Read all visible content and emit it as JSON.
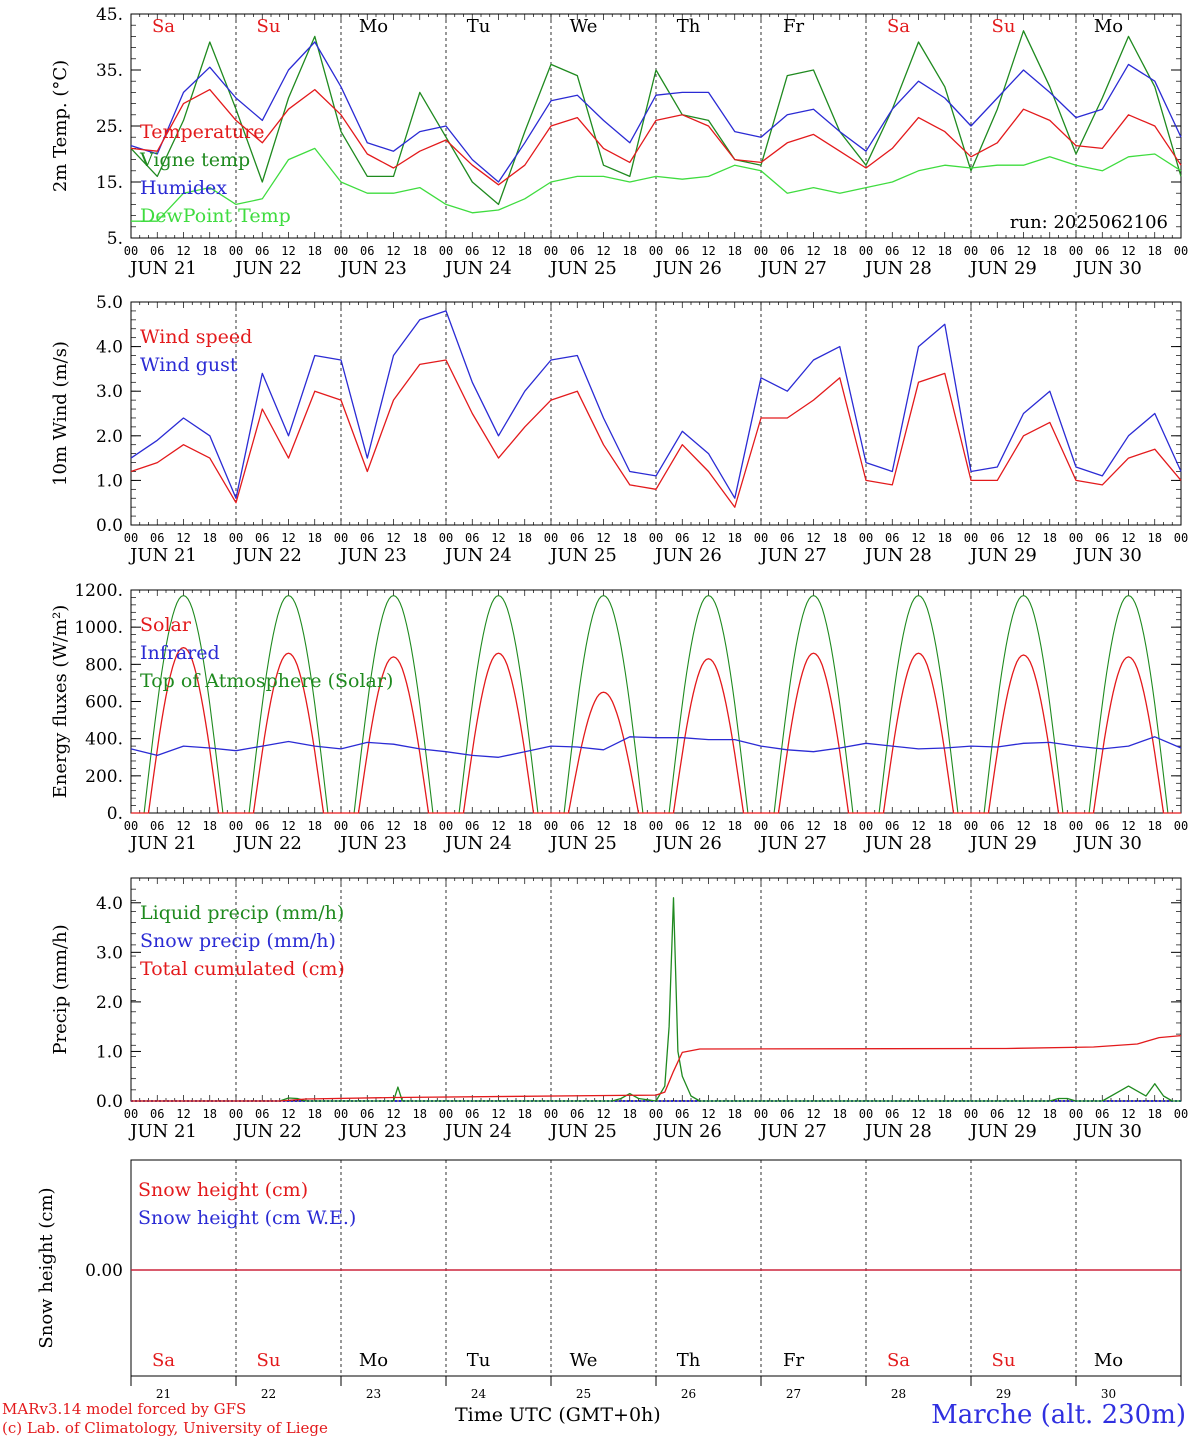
{
  "footer": {
    "model_line1": "MARv3.14 model forced by GFS",
    "model_line2": "(c) Lab. of Climatology, University of Liege",
    "xlabel": "Time UTC (GMT+0h)",
    "place": "Marche (alt. 230m)"
  },
  "colors": {
    "red": "#e31a1c",
    "green": "#1f8a1f",
    "blue": "#2b2bd4",
    "lime": "#3fdc3f"
  },
  "chart_data": [
    {
      "type": "line",
      "id": "temp",
      "ylabel": "2m Temp. (°C)",
      "ylim": [
        5,
        45
      ],
      "yticks": [
        "5.",
        "15.",
        "25.",
        "35.",
        "45."
      ],
      "annotation": "run: 2025062106",
      "weekdays": [
        "Sa",
        "Su",
        "Mo",
        "Tu",
        "We",
        "Th",
        "Fr",
        "Sa",
        "Su",
        "Mo"
      ],
      "weekend": [
        true,
        true,
        false,
        false,
        false,
        false,
        false,
        true,
        true,
        false
      ],
      "x_hours": [
        0,
        6,
        12,
        18,
        24,
        30,
        36,
        42,
        48,
        54,
        60,
        66,
        72,
        78,
        84,
        90,
        96,
        102,
        108,
        114,
        120,
        126,
        132,
        138,
        144,
        150,
        156,
        162,
        168,
        174,
        180,
        186,
        192,
        198,
        204,
        210,
        216,
        222,
        228,
        234,
        240
      ],
      "series": [
        {
          "name": "Temperature",
          "color": "red",
          "values": [
            21,
            20.5,
            29,
            31.5,
            26,
            22,
            28,
            31.5,
            27,
            20,
            17.5,
            20.5,
            22.5,
            18,
            14.5,
            18,
            25,
            26.5,
            21,
            18.5,
            26,
            27,
            25,
            19,
            18.5,
            22,
            23.5,
            20.5,
            17.5,
            21,
            26.5,
            24,
            19.5,
            22,
            28,
            26,
            21.5,
            21,
            27,
            25,
            18
          ]
        },
        {
          "name": "Vigne temp",
          "color": "green",
          "values": [
            21,
            16,
            26,
            40,
            28,
            15,
            30,
            41,
            24,
            16,
            16,
            31,
            23,
            15,
            11,
            24,
            36,
            34,
            18,
            16,
            35,
            27,
            26,
            19,
            18,
            34,
            35,
            24,
            18,
            28,
            40,
            32,
            17,
            28,
            42,
            32,
            20,
            30,
            41,
            32,
            16
          ]
        },
        {
          "name": "Humidex",
          "color": "blue",
          "values": [
            21.5,
            20,
            31,
            35.5,
            30,
            26,
            35,
            40,
            32,
            22,
            20.5,
            24,
            25,
            19,
            15,
            22,
            29.5,
            30.5,
            26,
            22,
            30.5,
            31,
            31,
            24,
            23,
            27,
            28,
            24,
            20.5,
            28,
            33,
            30,
            25,
            30,
            35,
            31,
            26.5,
            28,
            36,
            33,
            23
          ]
        },
        {
          "name": "DewPoint Temp",
          "color": "lime",
          "values": [
            8,
            8,
            13,
            14,
            11,
            12,
            19,
            21,
            15,
            13,
            13,
            14,
            11,
            9.5,
            10,
            12,
            15,
            16,
            16,
            15,
            16,
            15.5,
            16,
            18,
            17,
            13,
            14,
            13,
            14,
            15,
            17,
            18,
            17.5,
            18,
            18,
            19.5,
            18,
            17,
            19.5,
            20,
            17
          ]
        }
      ]
    },
    {
      "type": "line",
      "id": "wind",
      "ylabel": "10m Wind (m/s)",
      "ylim": [
        0,
        5
      ],
      "yticks": [
        "0.0",
        "1.0",
        "2.0",
        "3.0",
        "4.0",
        "5.0"
      ],
      "x_hours": [
        0,
        6,
        12,
        18,
        24,
        30,
        36,
        42,
        48,
        54,
        60,
        66,
        72,
        78,
        84,
        90,
        96,
        102,
        108,
        114,
        120,
        126,
        132,
        138,
        144,
        150,
        156,
        162,
        168,
        174,
        180,
        186,
        192,
        198,
        204,
        210,
        216,
        222,
        228,
        234,
        240
      ],
      "series": [
        {
          "name": "Wind speed",
          "color": "red",
          "values": [
            1.2,
            1.4,
            1.8,
            1.5,
            0.5,
            2.6,
            1.5,
            3.0,
            2.8,
            1.2,
            2.8,
            3.6,
            3.7,
            2.5,
            1.5,
            2.2,
            2.8,
            3.0,
            1.8,
            0.9,
            0.8,
            1.8,
            1.2,
            0.4,
            2.4,
            2.4,
            2.8,
            3.3,
            1.0,
            0.9,
            3.2,
            3.4,
            1.0,
            1.0,
            2.0,
            2.3,
            1.0,
            0.9,
            1.5,
            1.7,
            1.0
          ]
        },
        {
          "name": "Wind gust",
          "color": "blue",
          "values": [
            1.5,
            1.9,
            2.4,
            2.0,
            0.6,
            3.4,
            2.0,
            3.8,
            3.7,
            1.5,
            3.8,
            4.6,
            4.8,
            3.2,
            2.0,
            3.0,
            3.7,
            3.8,
            2.4,
            1.2,
            1.1,
            2.1,
            1.6,
            0.6,
            3.3,
            3.0,
            3.7,
            4.0,
            1.4,
            1.2,
            4.0,
            4.5,
            1.2,
            1.3,
            2.5,
            3.0,
            1.3,
            1.1,
            2.0,
            2.5,
            1.2
          ]
        }
      ]
    },
    {
      "type": "line",
      "id": "energy",
      "ylabel": "Energy fluxes (W/m²)",
      "ylim": [
        0,
        1200
      ],
      "yticks": [
        "0.",
        "200.",
        "400.",
        "600.",
        "800.",
        "1000.",
        "1200."
      ],
      "day_peaks": {
        "Top of Atmosphere (Solar)": [
          1170,
          1170,
          1170,
          1170,
          1170,
          1170,
          1170,
          1170,
          1170,
          1170
        ],
        "Solar": [
          890,
          860,
          840,
          860,
          650,
          830,
          860,
          860,
          850,
          840
        ]
      },
      "series": [
        {
          "name": "Solar",
          "color": "red"
        },
        {
          "name": "Infrared",
          "color": "blue",
          "x_hours": [
            0,
            6,
            12,
            18,
            24,
            30,
            36,
            42,
            48,
            54,
            60,
            66,
            72,
            78,
            84,
            90,
            96,
            102,
            108,
            114,
            120,
            126,
            132,
            138,
            144,
            150,
            156,
            162,
            168,
            174,
            180,
            186,
            192,
            198,
            204,
            210,
            216,
            222,
            228,
            234,
            240
          ],
          "values": [
            345,
            310,
            360,
            350,
            335,
            360,
            385,
            360,
            345,
            380,
            370,
            345,
            330,
            310,
            300,
            330,
            360,
            355,
            340,
            410,
            405,
            405,
            395,
            395,
            360,
            340,
            330,
            350,
            375,
            360,
            345,
            350,
            360,
            355,
            375,
            380,
            360,
            345,
            360,
            410,
            350
          ]
        },
        {
          "name": "Top of Atmosphere (Solar)",
          "color": "green"
        }
      ]
    },
    {
      "type": "line",
      "id": "precip",
      "ylabel": "Precip (mm/h)",
      "ylim": [
        0,
        4.5
      ],
      "yticks": [
        "0.0",
        "1.0",
        "2.0",
        "3.0",
        "4.0"
      ],
      "series": [
        {
          "name": "Liquid precip (mm/h)",
          "color": "green",
          "x_hours": [
            0,
            34,
            36,
            38,
            40,
            60,
            61,
            62,
            110,
            112,
            114,
            116,
            120,
            122,
            123,
            124,
            125,
            126,
            128,
            130,
            132,
            210,
            212,
            214,
            216,
            218,
            222,
            226,
            228,
            230,
            232,
            234,
            236,
            238,
            240
          ],
          "values": [
            0,
            0,
            0.06,
            0.05,
            0,
            0,
            0.28,
            0,
            0,
            0.05,
            0.15,
            0.05,
            0,
            0.3,
            1.5,
            4.1,
            1.0,
            0.5,
            0.1,
            0,
            0,
            0,
            0.05,
            0.05,
            0,
            0,
            0,
            0.2,
            0.3,
            0.2,
            0.1,
            0.35,
            0.1,
            0,
            0
          ]
        },
        {
          "name": "Snow precip (mm/h)",
          "color": "blue",
          "x_hours": [
            0,
            240
          ],
          "values": [
            0,
            0
          ]
        },
        {
          "name": "Total cumulated (cm)",
          "color": "red",
          "x_hours": [
            0,
            34,
            40,
            60,
            120,
            122,
            124,
            126,
            130,
            200,
            220,
            230,
            235,
            240
          ],
          "values": [
            0,
            0,
            0.04,
            0.07,
            0.12,
            0.18,
            0.6,
            0.98,
            1.05,
            1.06,
            1.09,
            1.15,
            1.28,
            1.32
          ]
        }
      ]
    },
    {
      "type": "line",
      "id": "snow",
      "ylabel": "Snow height (cm)",
      "ytick": "0.00",
      "day_numbers": [
        "21",
        "22",
        "23",
        "24",
        "25",
        "26",
        "27",
        "28",
        "29",
        "30"
      ],
      "series": [
        {
          "name": "Snow height (cm)",
          "color": "red",
          "x_hours": [
            0,
            240
          ],
          "values": [
            0,
            0
          ]
        },
        {
          "name": "Snow height (cm W.E.)",
          "color": "blue",
          "x_hours": [
            0,
            240
          ],
          "values": [
            0,
            0
          ]
        }
      ]
    }
  ],
  "day_labels": [
    "JUN 21",
    "JUN 22",
    "JUN 23",
    "JUN 24",
    "JUN 25",
    "JUN 26",
    "JUN 27",
    "JUN 28",
    "JUN 29",
    "JUN 30"
  ],
  "hour_labels": [
    "00",
    "06",
    "12",
    "18"
  ],
  "last_hour_label": "00"
}
